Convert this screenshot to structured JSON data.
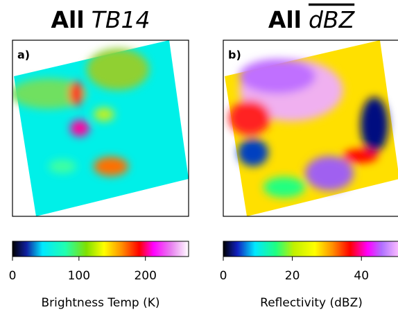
{
  "chart_data": [
    {
      "type": "image",
      "title": "All",
      "title_symbol": "TB14",
      "panel_label": "a)",
      "colorbar": {
        "xlim": [
          0,
          265
        ],
        "xticks": [
          0,
          100,
          200
        ],
        "xlabel": "Brightness Temp (K)"
      }
    },
    {
      "type": "image",
      "title": "All",
      "title_symbol": "dBZ",
      "panel_label": "b)",
      "colorbar": {
        "xlim": [
          0,
          51
        ],
        "xticks": [
          0,
          20,
          40
        ],
        "xlabel": "Reflectivity (dBZ)"
      }
    }
  ]
}
